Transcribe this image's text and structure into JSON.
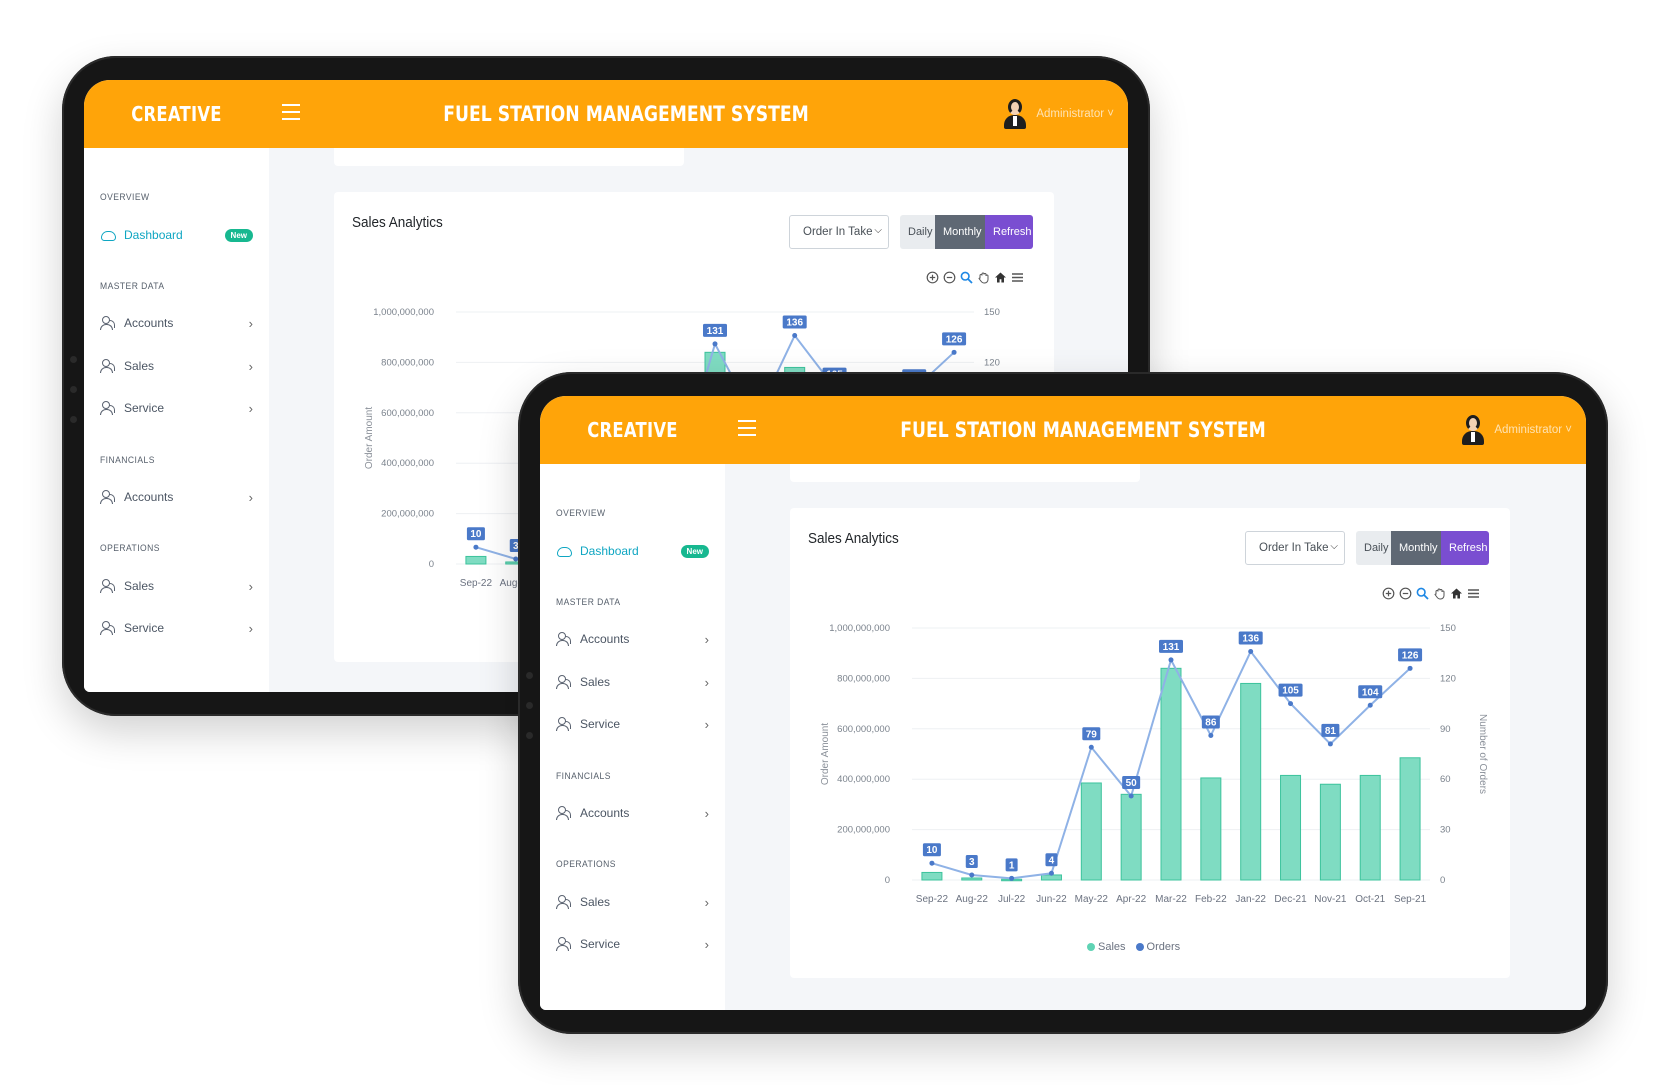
{
  "app": {
    "brand": "CREATIVE",
    "title": "FUEL STATION MANAGEMENT SYSTEM",
    "user": "Administrator ˅"
  },
  "sidebar": {
    "overview_label": "OVERVIEW",
    "dashboard_label": "Dashboard",
    "dashboard_badge": "New",
    "master_data_label": "MASTER DATA",
    "master_items": [
      "Accounts",
      "Sales",
      "Service"
    ],
    "financials_label": "FINANCIALS",
    "financial_items": [
      "Accounts"
    ],
    "operations_label": "OPERATIONS",
    "operation_items": [
      "Sales",
      "Service"
    ],
    "chevron": "›"
  },
  "card": {
    "title": "Sales Analytics",
    "select_value": "Order In Take",
    "btn_daily": "Daily",
    "btn_monthly": "Monthly",
    "btn_refresh": "Refresh",
    "toolbar_icons": [
      "zoom-in-icon",
      "zoom-out-icon",
      "zoom-selection-icon",
      "pan-hand-icon",
      "home-icon",
      "menu-icon"
    ]
  },
  "colors": {
    "topbar": "#ffa409",
    "sales": "#5fd3b4",
    "orders": "#4a79c9",
    "monthly_button": "#5f6874",
    "refresh_button": "#7a4ed1",
    "badge": "#17b890",
    "active_link": "#0fa6c2"
  },
  "chart_data": {
    "type": "bar",
    "title": "",
    "categories": [
      "Sep-22",
      "Aug-22",
      "Jul-22",
      "Jun-22",
      "May-22",
      "Apr-22",
      "Mar-22",
      "Feb-22",
      "Jan-22",
      "Dec-21",
      "Nov-21",
      "Oct-21",
      "Sep-21"
    ],
    "ylabel": "Order Amount",
    "y2label": "Number of Orders",
    "ylim": [
      0,
      1000000000
    ],
    "y2lim": [
      0,
      150
    ],
    "yticks": [
      "0",
      "200,000,000",
      "400,000,000",
      "600,000,000",
      "800,000,000",
      "1,000,000,000"
    ],
    "y2ticks": [
      "0",
      "30",
      "60",
      "90",
      "120",
      "150"
    ],
    "series": [
      {
        "name": "Sales",
        "type": "bar",
        "axis": "left",
        "values": [
          30000000,
          8000000,
          3000000,
          20000000,
          385000000,
          340000000,
          840000000,
          405000000,
          780000000,
          415000000,
          380000000,
          415000000,
          485000000
        ]
      },
      {
        "name": "Orders",
        "type": "line",
        "axis": "right",
        "values": [
          10,
          3,
          1,
          4,
          79,
          50,
          131,
          86,
          136,
          105,
          81,
          104,
          126
        ]
      }
    ],
    "legend": "bottom-center",
    "grid": true
  }
}
